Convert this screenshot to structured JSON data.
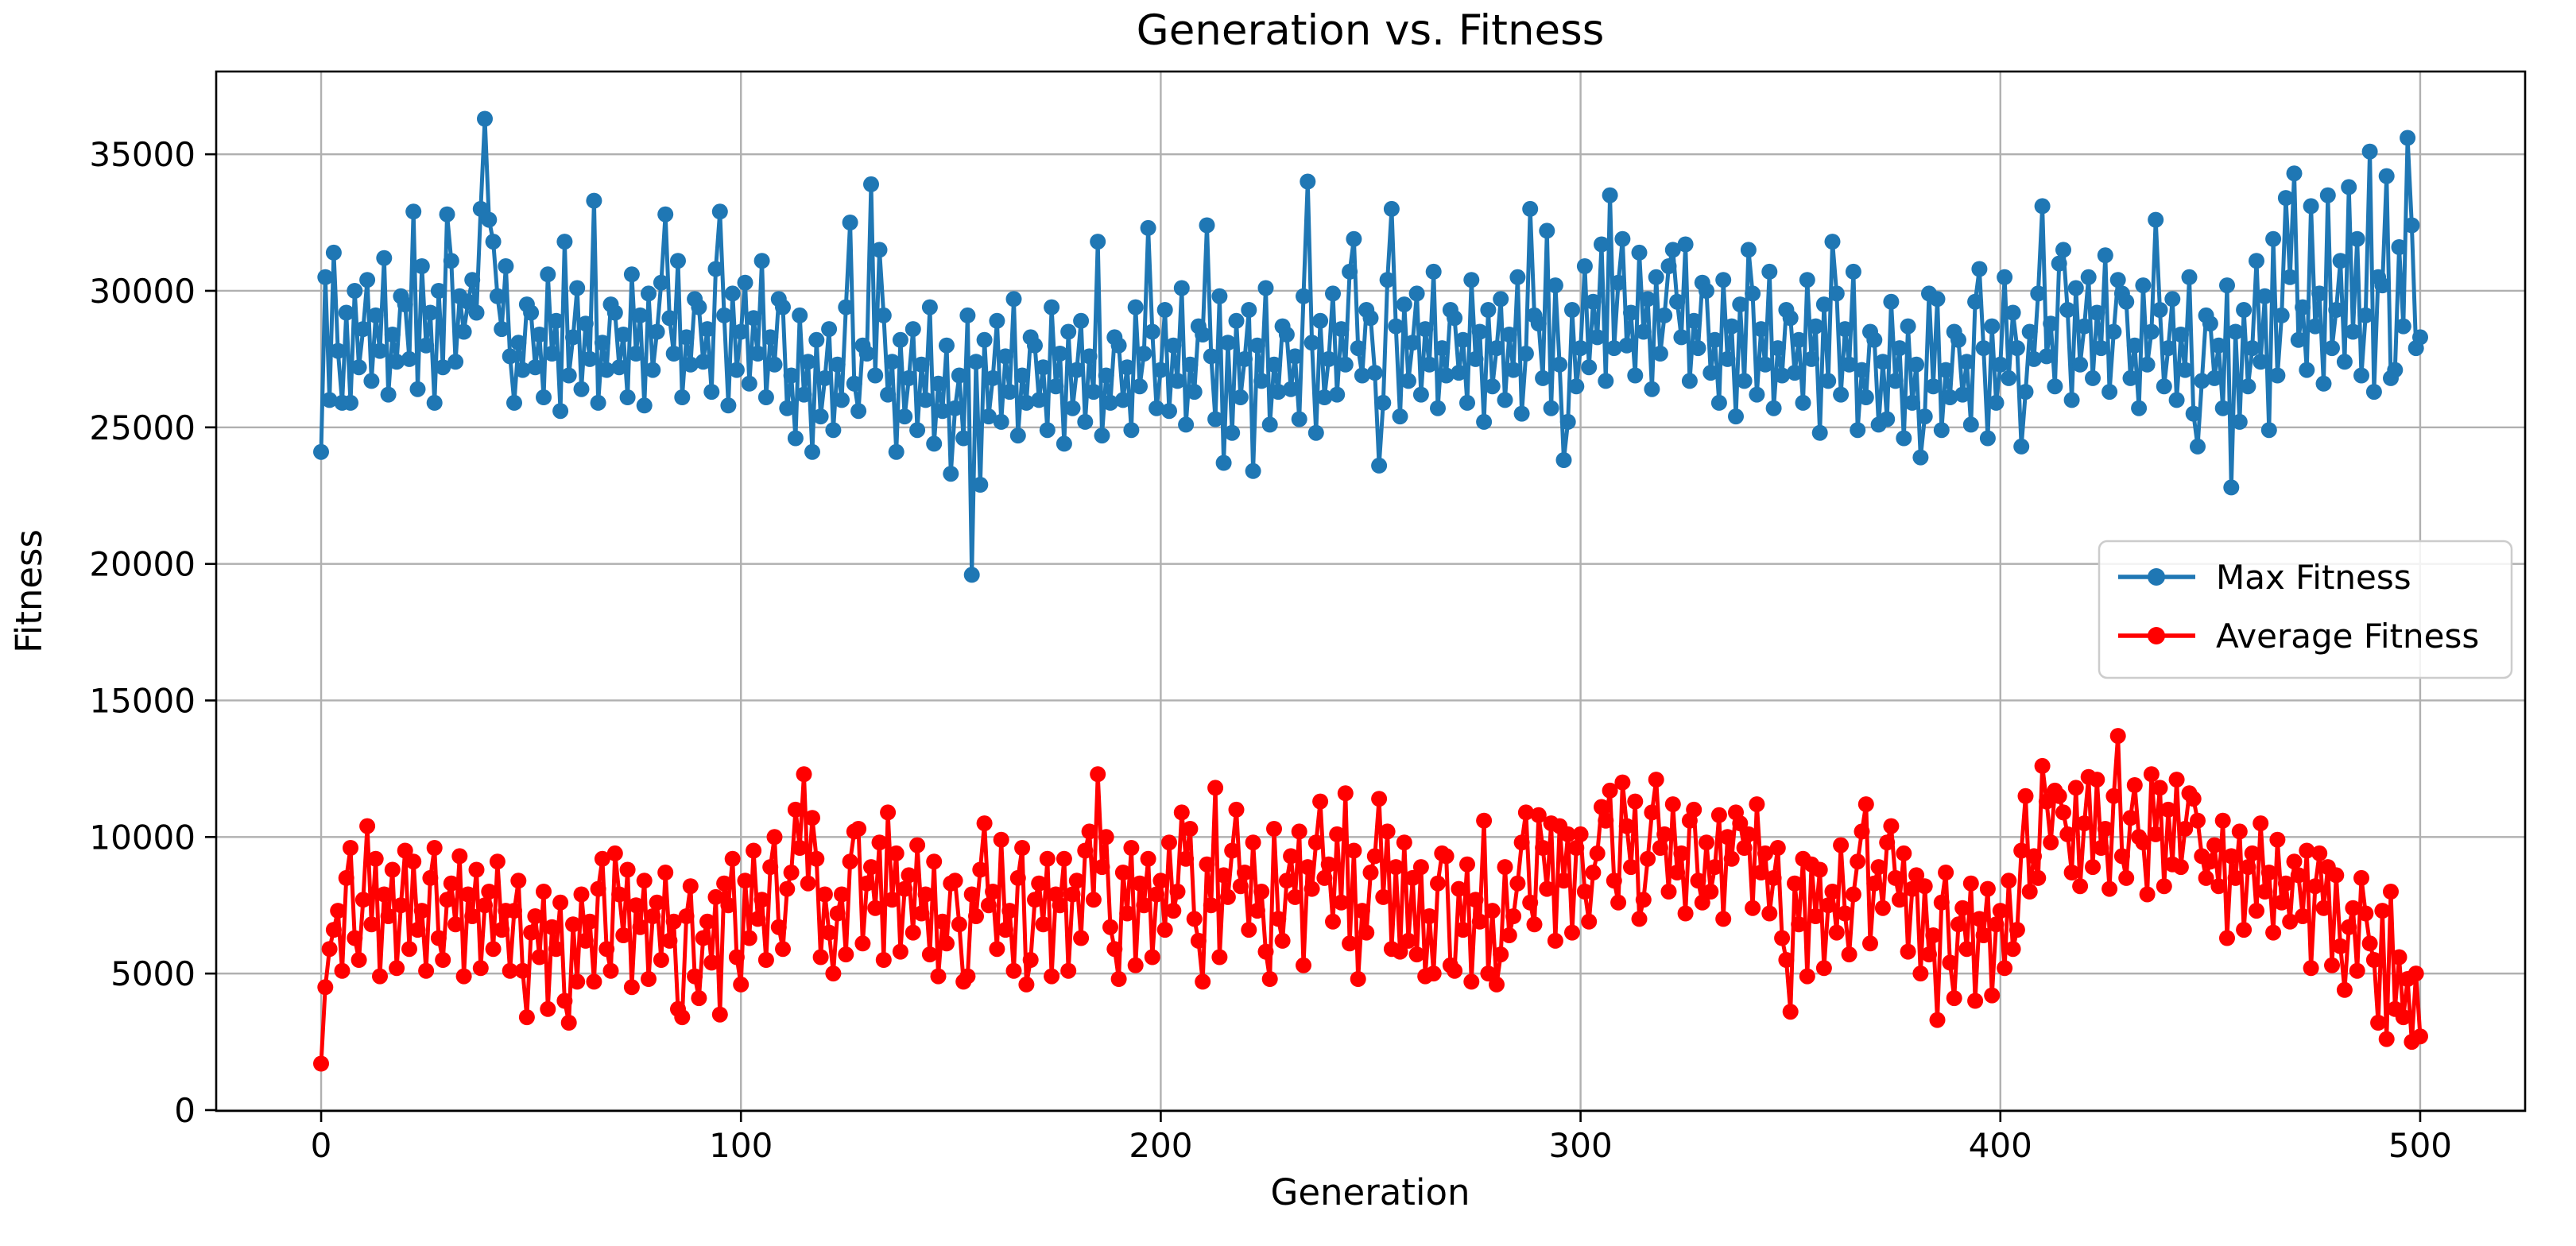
{
  "figure": {
    "title": "Generation vs. Fitness",
    "xlabel": "Generation",
    "ylabel": "Fitness"
  },
  "chart_data": {
    "type": "line",
    "title": "Generation vs. Fitness",
    "xlabel": "Generation",
    "ylabel": "Fitness",
    "grid": true,
    "xlim": [
      -25,
      525
    ],
    "ylim": [
      -30,
      38030
    ],
    "x_ticks": [
      0,
      100,
      200,
      300,
      400,
      500
    ],
    "y_ticks": [
      0,
      5000,
      10000,
      15000,
      20000,
      25000,
      30000,
      35000
    ],
    "legend": {
      "position": "center-right",
      "entries": [
        "Max Fitness",
        "Average Fitness"
      ]
    },
    "x": {
      "start": 0,
      "step": 1,
      "count": 501
    },
    "series": [
      {
        "name": "Max Fitness",
        "color": "#1f77b4",
        "marker": "circle",
        "values": [
          24100,
          30500,
          26000,
          31400,
          27800,
          25900,
          29200,
          25900,
          30000,
          27200,
          28600,
          30400,
          26700,
          29100,
          27800,
          31200,
          26200,
          28400,
          27400,
          29800,
          29500,
          27500,
          32900,
          26400,
          30900,
          28000,
          29200,
          25900,
          30000,
          27200,
          32800,
          31100,
          27400,
          29800,
          28500,
          29600,
          30400,
          29200,
          33000,
          36300,
          32600,
          31800,
          29800,
          28600,
          30900,
          27600,
          25900,
          28100,
          27100,
          29500,
          29200,
          27200,
          28400,
          26100,
          30600,
          27700,
          28900,
          25600,
          31800,
          26900,
          28300,
          30100,
          26400,
          28800,
          27500,
          33300,
          25900,
          28100,
          27100,
          29500,
          29200,
          27200,
          28400,
          26100,
          30600,
          27700,
          29100,
          25800,
          29900,
          27100,
          28500,
          30300,
          32800,
          29000,
          27700,
          31100,
          26100,
          28300,
          27300,
          29700,
          29400,
          27400,
          28600,
          26300,
          30800,
          32900,
          29100,
          25800,
          29900,
          27100,
          28500,
          30300,
          26600,
          29000,
          27700,
          31100,
          26100,
          28300,
          27300,
          29700,
          29400,
          25700,
          26900,
          24600,
          29100,
          26200,
          27400,
          24100,
          28200,
          25400,
          26800,
          28600,
          24900,
          27300,
          26000,
          29400,
          32500,
          26600,
          25600,
          28000,
          27700,
          33900,
          26900,
          31500,
          29100,
          26200,
          27400,
          24100,
          28200,
          25400,
          26800,
          28600,
          24900,
          27300,
          26000,
          29400,
          24400,
          26600,
          25600,
          28000,
          23300,
          25700,
          26900,
          24600,
          29100,
          19600,
          27400,
          22900,
          28200,
          25400,
          26800,
          28900,
          25200,
          27600,
          26300,
          29700,
          24700,
          26900,
          25900,
          28300,
          28000,
          26000,
          27200,
          24900,
          29400,
          26500,
          27700,
          24400,
          28500,
          25700,
          27100,
          28900,
          25200,
          27600,
          26300,
          31800,
          24700,
          26900,
          25900,
          28300,
          28000,
          26000,
          27200,
          24900,
          29400,
          26500,
          27700,
          32300,
          28500,
          25700,
          27100,
          29300,
          25600,
          28000,
          26700,
          30100,
          25100,
          27300,
          26300,
          28700,
          28400,
          32400,
          27600,
          25300,
          29800,
          23700,
          28100,
          24800,
          28900,
          26100,
          27500,
          29300,
          23400,
          28000,
          26700,
          30100,
          25100,
          27300,
          26300,
          28700,
          28400,
          26400,
          27600,
          25300,
          29800,
          34000,
          28100,
          24800,
          28900,
          26100,
          27500,
          29900,
          26200,
          28600,
          27300,
          30700,
          31900,
          27900,
          26900,
          29300,
          29000,
          27000,
          23600,
          25900,
          30400,
          33000,
          28700,
          25400,
          29500,
          26700,
          28100,
          29900,
          26200,
          28600,
          27300,
          30700,
          25700,
          27900,
          26900,
          29300,
          29000,
          27000,
          28200,
          25900,
          30400,
          27500,
          28500,
          25200,
          29300,
          26500,
          27900,
          29700,
          26000,
          28400,
          27100,
          30500,
          25500,
          27700,
          33000,
          29100,
          28800,
          26800,
          32200,
          25700,
          30200,
          27300,
          23800,
          25200,
          29300,
          26500,
          27900,
          30900,
          27200,
          29600,
          28300,
          31700,
          26700,
          33500,
          27900,
          30300,
          31900,
          28000,
          29200,
          26900,
          31400,
          28500,
          29700,
          26400,
          30500,
          27700,
          29100,
          30900,
          31500,
          29600,
          28300,
          31700,
          26700,
          28900,
          27900,
          30300,
          30000,
          27000,
          28200,
          25900,
          30400,
          27500,
          28700,
          25400,
          29500,
          26700,
          31500,
          29900,
          26200,
          28600,
          27300,
          30700,
          25700,
          27900,
          26900,
          29300,
          29000,
          27000,
          28200,
          25900,
          30400,
          27500,
          28700,
          24800,
          29500,
          26700,
          31800,
          29900,
          26200,
          28600,
          27300,
          30700,
          24900,
          27100,
          26100,
          28500,
          28200,
          25100,
          27400,
          25300,
          29600,
          26700,
          27900,
          24600,
          28700,
          25900,
          27300,
          23900,
          25400,
          29900,
          26500,
          29700,
          24900,
          27100,
          26100,
          28500,
          28200,
          26200,
          27400,
          25100,
          29600,
          30800,
          27900,
          24600,
          28700,
          25900,
          27300,
          30500,
          26800,
          29200,
          27900,
          24300,
          26300,
          28500,
          27500,
          29900,
          33100,
          27600,
          28800,
          26500,
          31000,
          31500,
          29300,
          26000,
          30100,
          27300,
          28700,
          30500,
          26800,
          29200,
          27900,
          31300,
          26300,
          28500,
          30400,
          29900,
          29600,
          26800,
          28000,
          25700,
          30200,
          27300,
          28500,
          32600,
          29300,
          26500,
          27900,
          29700,
          26000,
          28400,
          27100,
          30500,
          25500,
          24300,
          26700,
          29100,
          28800,
          26800,
          28000,
          25700,
          30200,
          22800,
          28500,
          25200,
          29300,
          26500,
          27900,
          31100,
          27400,
          29800,
          24900,
          31900,
          26900,
          29100,
          33400,
          30500,
          34300,
          28200,
          29400,
          27100,
          33100,
          28700,
          29900,
          26600,
          33500,
          27900,
          29300,
          31100,
          27400,
          33800,
          28500,
          31900,
          26900,
          29100,
          35100,
          26300,
          30500,
          30200,
          34200,
          26800,
          27100,
          31600,
          28700,
          35600,
          32400,
          27900,
          28300
        ]
      },
      {
        "name": "Average Fitness",
        "color": "#ff0000",
        "marker": "circle",
        "values": [
          1700,
          4500,
          5900,
          6600,
          7300,
          5100,
          8500,
          9600,
          6300,
          5500,
          7700,
          10400,
          6800,
          9200,
          4900,
          7900,
          7100,
          8800,
          5200,
          7500,
          9500,
          5900,
          9100,
          6600,
          7300,
          5100,
          8500,
          9600,
          6300,
          5500,
          7700,
          8300,
          6800,
          9300,
          4900,
          7900,
          7100,
          8800,
          5200,
          7500,
          8000,
          5900,
          9100,
          6600,
          7300,
          5100,
          7300,
          8400,
          5100,
          3400,
          6500,
          7100,
          5600,
          8000,
          3700,
          6700,
          5900,
          7600,
          4000,
          3200,
          6800,
          4700,
          7900,
          6200,
          6900,
          4700,
          8100,
          9200,
          5900,
          5100,
          9400,
          7900,
          6400,
          8800,
          4500,
          7500,
          6700,
          8400,
          4800,
          7100,
          7600,
          5500,
          8700,
          6200,
          6900,
          3700,
          3400,
          7100,
          8200,
          4900,
          4100,
          6300,
          6900,
          5400,
          7800,
          3500,
          8300,
          7500,
          9200,
          5600,
          4600,
          8400,
          6300,
          9500,
          7000,
          7700,
          5500,
          8900,
          10000,
          6700,
          5900,
          8100,
          8700,
          11000,
          9600,
          12300,
          8300,
          10700,
          9200,
          5600,
          7900,
          6500,
          5000,
          7200,
          7900,
          5700,
          9100,
          10200,
          10300,
          6100,
          8300,
          8900,
          7400,
          9800,
          5500,
          10900,
          7700,
          9400,
          5800,
          8100,
          8600,
          6500,
          9700,
          7200,
          7900,
          5700,
          9100,
          4900,
          6900,
          6100,
          8300,
          8400,
          6800,
          4700,
          4900,
          7900,
          7100,
          8800,
          10500,
          7500,
          8000,
          5900,
          9900,
          6600,
          7300,
          5100,
          8500,
          9600,
          4600,
          5500,
          7700,
          8300,
          6800,
          9200,
          4900,
          7900,
          7500,
          9200,
          5100,
          7900,
          8400,
          6300,
          9500,
          10200,
          7700,
          12300,
          8900,
          10000,
          6700,
          5900,
          4800,
          8700,
          7200,
          9600,
          5300,
          8300,
          7500,
          9200,
          5600,
          7900,
          8400,
          6600,
          9800,
          7300,
          8000,
          10900,
          9200,
          10300,
          7000,
          6200,
          4700,
          9000,
          7500,
          11800,
          5600,
          8600,
          7800,
          9500,
          11000,
          8200,
          8700,
          6600,
          9800,
          7300,
          8000,
          5800,
          4800,
          10300,
          7000,
          6200,
          8400,
          9300,
          7800,
          10200,
          5300,
          8900,
          8100,
          9800,
          11300,
          8500,
          9000,
          6900,
          10100,
          7600,
          11600,
          6100,
          9500,
          4800,
          7300,
          6500,
          8700,
          9300,
          11400,
          7800,
          10200,
          5900,
          8900,
          5800,
          9800,
          6200,
          8500,
          5700,
          8900,
          4900,
          7100,
          5000,
          8300,
          9400,
          9300,
          5300,
          5100,
          8100,
          6600,
          9000,
          4700,
          7700,
          6900,
          10600,
          5000,
          7300,
          4600,
          5700,
          8900,
          6400,
          7100,
          8300,
          9800,
          10900,
          7600,
          6800,
          10800,
          9600,
          8100,
          10500,
          6200,
          10400,
          8400,
          10100,
          6500,
          9600,
          10100,
          8000,
          6900,
          8700,
          9400,
          11100,
          10600,
          11700,
          8400,
          7600,
          12000,
          10400,
          8900,
          11300,
          7000,
          7700,
          9200,
          10900,
          12100,
          9600,
          10100,
          8000,
          11200,
          8700,
          9400,
          7200,
          10600,
          11000,
          8400,
          7600,
          9800,
          8000,
          8900,
          10800,
          7000,
          10000,
          9200,
          10900,
          10500,
          9600,
          10100,
          7400,
          11200,
          8700,
          9400,
          7200,
          8500,
          9600,
          6300,
          5500,
          3600,
          8300,
          6800,
          9200,
          4900,
          9000,
          7100,
          8800,
          5200,
          7500,
          8000,
          6500,
          9700,
          7200,
          5700,
          7900,
          9100,
          10200,
          11200,
          6100,
          8300,
          8900,
          7400,
          9800,
          10400,
          8500,
          7700,
          9400,
          5800,
          8100,
          8600,
          5000,
          8200,
          5700,
          6400,
          3300,
          7600,
          8700,
          5400,
          4100,
          6800,
          7400,
          5900,
          8300,
          4000,
          7000,
          6400,
          8100,
          4200,
          6800,
          7300,
          5200,
          8400,
          5900,
          6600,
          9500,
          11500,
          8000,
          9300,
          8500,
          12600,
          11300,
          9800,
          11700,
          11500,
          10900,
          10100,
          8700,
          11800,
          8200,
          10500,
          12200,
          8900,
          12100,
          9600,
          10300,
          8100,
          11500,
          13700,
          9300,
          8500,
          10700,
          11900,
          10000,
          9800,
          7900,
          12300,
          10100,
          11800,
          8200,
          11000,
          9000,
          12100,
          8900,
          10300,
          11600,
          11400,
          10600,
          9300,
          8500,
          9100,
          9700,
          8200,
          10600,
          6300,
          9300,
          8500,
          10200,
          6600,
          8900,
          9400,
          7300,
          10500,
          8000,
          8700,
          6500,
          9900,
          7600,
          8300,
          6900,
          9100,
          8600,
          7100,
          9500,
          5200,
          8200,
          9400,
          7400,
          8900,
          5300,
          8600,
          6000,
          4400,
          6700,
          7400,
          5100,
          8500,
          7200,
          6100,
          5500,
          3200,
          7300,
          2600,
          8000,
          3700,
          5600,
          3400,
          4800,
          2500,
          5000,
          2700
        ]
      }
    ]
  }
}
